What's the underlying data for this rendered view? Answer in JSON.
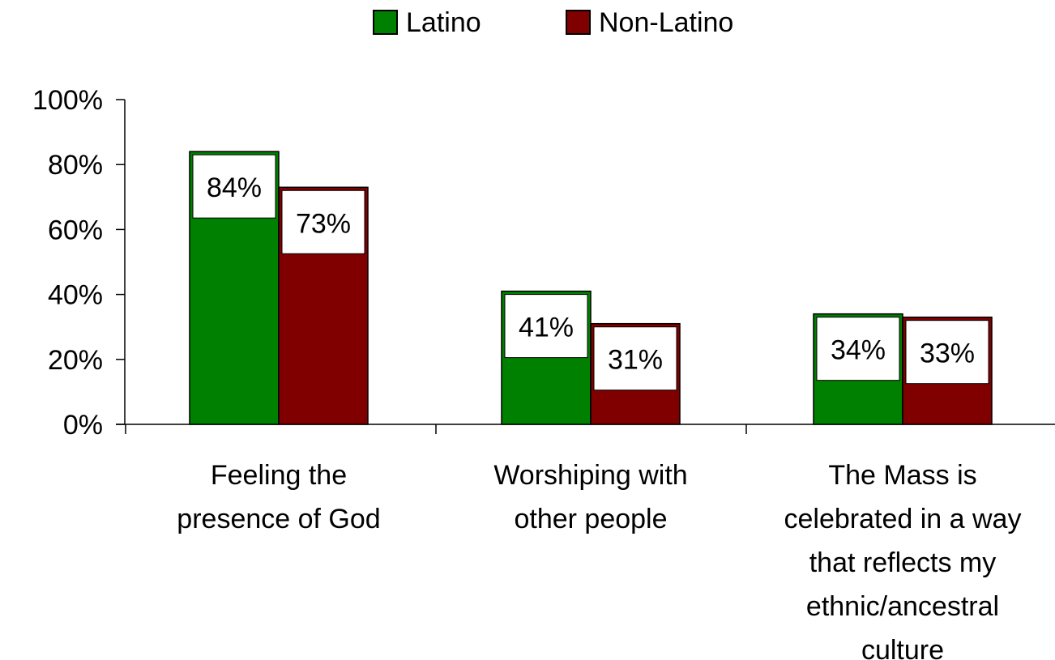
{
  "chart_data": {
    "type": "bar",
    "title": "",
    "xlabel": "",
    "ylabel": "",
    "ylim": [
      0,
      100
    ],
    "y_ticks": [
      "0%",
      "20%",
      "40%",
      "60%",
      "80%",
      "100%"
    ],
    "grid": false,
    "legend_position": "top-center",
    "categories": [
      [
        "Feeling the",
        "presence of God"
      ],
      [
        "Worshiping with",
        "other people"
      ],
      [
        "The Mass is",
        "celebrated in a way",
        "that reflects my",
        "ethnic/ancestral",
        "culture"
      ]
    ],
    "series": [
      {
        "name": "Latino",
        "color": "#008000",
        "values": [
          84,
          41,
          34
        ],
        "labels": [
          "84%",
          "41%",
          "34%"
        ]
      },
      {
        "name": "Non-Latino",
        "color": "#800000",
        "values": [
          73,
          31,
          33
        ],
        "labels": [
          "73%",
          "31%",
          "33%"
        ]
      }
    ]
  }
}
